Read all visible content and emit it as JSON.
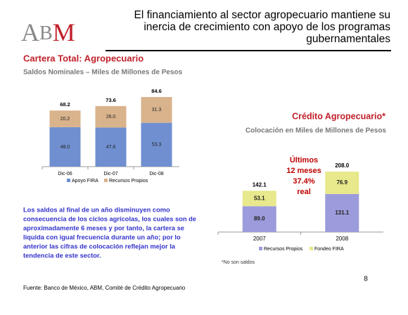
{
  "header": {
    "logo_letters": [
      "A",
      "B",
      "M"
    ],
    "title_lines": [
      "El financiamiento al sector agropecuario mantiene su",
      "inercia de crecimiento con apoyo de los programas",
      "gubernamentales"
    ]
  },
  "chart_data": [
    {
      "type": "stacked_bar",
      "title": "Cartera Total: Agropecuario",
      "subtitle": "Saldos Nominales – Miles de Millones de Pesos",
      "categories": [
        "Dic-06",
        "Dic-07",
        "Dic-08"
      ],
      "series": [
        {
          "name": "Apoyo FIRA",
          "color": "#6f8fd0",
          "values": [
            48.0,
            47.6,
            53.3
          ],
          "value_labels": [
            "48.0",
            "47.6",
            "53.3"
          ]
        },
        {
          "name": "Recursos Propios",
          "color": "#d9b38c",
          "values": [
            20.2,
            26.0,
            31.3
          ],
          "value_labels": [
            "20.2",
            "26.0",
            "31.3"
          ]
        }
      ],
      "totals": [
        68.2,
        73.6,
        84.6
      ]
    },
    {
      "type": "stacked_bar",
      "title": "Crédito Agropecuario*",
      "subtitle": "Colocación en Miles de Millones de Pesos",
      "categories": [
        "2007",
        "2008"
      ],
      "series": [
        {
          "name": "Recursos Propios",
          "color": "#9c9cdc",
          "values": [
            89.0,
            131.1
          ],
          "value_labels": [
            "89.0",
            "131.1"
          ]
        },
        {
          "name": "Fondeo FIRA",
          "color": "#e8e88c",
          "values": [
            53.1,
            76.9
          ],
          "value_labels": [
            "53.1",
            "76.9"
          ]
        }
      ],
      "totals": [
        142.1,
        208.0
      ],
      "total_labels": [
        "142.1",
        "208.0"
      ],
      "annotation_lines": [
        "Últimos",
        "12 meses",
        "37.4%",
        "real"
      ],
      "note": "*No son saldos"
    }
  ],
  "paragraph_lines": [
    "Los saldos al final de un año disminuyen como",
    "consecuencia de los ciclos agrícolas, los cuales son de",
    "aproximadamente 6 meses y por tanto, la cartera se",
    "liquida con igual frecuencia durante un año; por lo",
    "anterior las cifras de colocación reflejan mejor la",
    "tendencia de este sector."
  ],
  "source": "Fuente:  Banco de México, ABM, Comité de Crédito Agropecuario",
  "page_number": "8"
}
